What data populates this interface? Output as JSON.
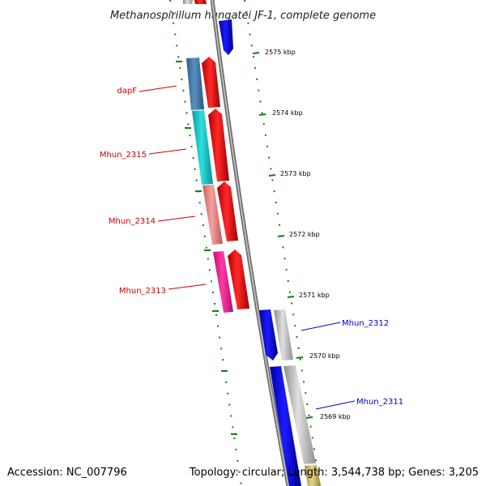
{
  "title": "Methanospirillum hungatei JF-1, complete genome",
  "accession": "Accession: NC_007796",
  "summary": "Topology: circular; Length: 3,544,738 bp; Genes: 3,205",
  "ticks": [
    "2575 kbp",
    "2574 kbp",
    "2573 kbp",
    "2572 kbp",
    "2571 kbp",
    "2570 kbp",
    "2569 kbp"
  ],
  "gene_labels": [
    {
      "name": "dapF",
      "strand": "forward"
    },
    {
      "name": "Mhun_2315",
      "strand": "forward"
    },
    {
      "name": "Mhun_2314",
      "strand": "forward"
    },
    {
      "name": "Mhun_2313",
      "strand": "forward"
    },
    {
      "name": "Mhun_2312",
      "strand": "reverse"
    },
    {
      "name": "Mhun_2311",
      "strand": "reverse"
    }
  ],
  "colors": {
    "forward_label": "#cc0000",
    "reverse_label": "#0000cc",
    "forward_cds": "#ff0000",
    "reverse_cds": "#0000ff",
    "backbone": "#808080",
    "tick": "#1a7a1a",
    "cog_dapF": "#4a7fb0",
    "cog_2315": "#1ec8c8",
    "cog_2314": "#f08080",
    "cog_2313": "#ff1493",
    "cog_reverse": "#c0c0c0",
    "cog_bottom": "#c8b870"
  }
}
